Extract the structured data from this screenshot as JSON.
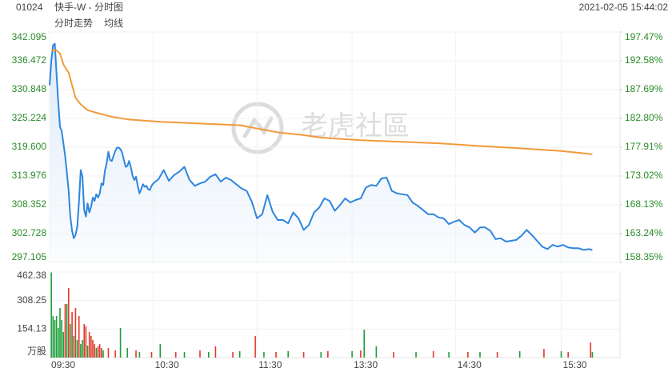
{
  "header": {
    "code": "01024",
    "name": "快手-W - 分时图",
    "datetime": "2021-02-05 15:44:02"
  },
  "watermark": "老虎社區",
  "chart_data": [
    {
      "type": "line",
      "xlim": [
        0,
        330
      ],
      "ylim": [
        297.105,
        342.095
      ],
      "yticks": [
        342.095,
        336.472,
        330.848,
        325.224,
        {
          "value": 319.6,
          "label": "319.600"
        },
        313.976,
        308.352,
        302.728,
        297.105
      ],
      "y2lim": [
        158.35,
        197.47
      ],
      "y2ticks": [
        {
          "value": 197.47,
          "label": "197.47%"
        },
        {
          "value": 192.58,
          "label": "192.58%"
        },
        {
          "value": 187.69,
          "label": "187.69%"
        },
        {
          "value": 182.8,
          "label": "182.80%"
        },
        {
          "value": 177.91,
          "label": "177.91%"
        },
        {
          "value": 173.02,
          "label": "173.02%"
        },
        {
          "value": 168.13,
          "label": "168.13%"
        },
        {
          "value": 163.24,
          "label": "163.24%"
        },
        {
          "value": 158.35,
          "label": "158.35%"
        }
      ],
      "grid": true,
      "series": [
        {
          "name": "分时走势",
          "color": "#2f86dc",
          "x": [
            0,
            1,
            2,
            3,
            4,
            5,
            6,
            7,
            8,
            9,
            10,
            11,
            12,
            13,
            14,
            15,
            16,
            17,
            18,
            19,
            20,
            21,
            22,
            23,
            24,
            25,
            26,
            27,
            28,
            29,
            30,
            31,
            32,
            33,
            34,
            35,
            36,
            37,
            38,
            39,
            40,
            41,
            42,
            43,
            44,
            45,
            46,
            47,
            48,
            49,
            50,
            51,
            52,
            53,
            54,
            55,
            56,
            57,
            58,
            59,
            60,
            63,
            66,
            69,
            72,
            75,
            78,
            81,
            84,
            87,
            90,
            93,
            96,
            99,
            102,
            105,
            108,
            111,
            114,
            117,
            120,
            123,
            126,
            129,
            132,
            135,
            138,
            141,
            144,
            147,
            150,
            153,
            156,
            159,
            162,
            165,
            168,
            171,
            174,
            177,
            180,
            183,
            186,
            189,
            192,
            195,
            198,
            201,
            204,
            207,
            210,
            213,
            216,
            219,
            222,
            225,
            228,
            231,
            234,
            237,
            240,
            243,
            246,
            249,
            252,
            255,
            258,
            261,
            264,
            267,
            270,
            273,
            276,
            279,
            282,
            285,
            288,
            291,
            294,
            297,
            300,
            303,
            306,
            309,
            312,
            314
          ],
          "values": [
            331.7,
            336.57,
            339.5,
            339.82,
            334.14,
            328.45,
            323.58,
            322.77,
            320.33,
            317.89,
            314.65,
            311.07,
            306.04,
            303.28,
            301.82,
            302.47,
            304.09,
            308.96,
            315.13,
            313.83,
            307.34,
            306.04,
            308.64,
            306.85,
            307.99,
            309.77,
            309.12,
            310.42,
            309.77,
            310.59,
            312.54,
            312.21,
            314.97,
            316.43,
            318.71,
            317.08,
            316.92,
            317.89,
            318.87,
            319.52,
            319.52,
            319.19,
            318.54,
            317.08,
            315.78,
            315.95,
            316.92,
            315.78,
            314.0,
            313.18,
            313.83,
            312.05,
            310.59,
            311.4,
            312.37,
            311.89,
            312.05,
            311.4,
            311.24,
            312.05,
            312.54,
            313.35,
            315.13,
            313.02,
            314.16,
            314.81,
            315.78,
            313.18,
            312.05,
            312.54,
            312.86,
            313.83,
            314.32,
            312.86,
            313.67,
            313.18,
            312.37,
            311.56,
            311.07,
            308.96,
            305.71,
            306.53,
            310.26,
            307.01,
            305.39,
            305.39,
            304.74,
            306.85,
            305.71,
            303.44,
            304.41,
            306.85,
            307.82,
            309.61,
            309.12,
            307.18,
            308.31,
            309.61,
            308.8,
            309.29,
            309.61,
            311.72,
            312.21,
            312.05,
            313.51,
            313.67,
            311.07,
            310.59,
            310.42,
            310.26,
            308.8,
            308.15,
            307.34,
            306.53,
            306.53,
            305.88,
            305.71,
            304.58,
            305.06,
            305.39,
            304.41,
            303.93,
            302.95,
            303.93,
            303.93,
            303.28,
            301.65,
            301.82,
            301.17,
            301.33,
            301.49,
            302.3,
            303.44,
            302.47,
            301.33,
            300.19,
            299.7,
            300.52,
            300.19,
            300.52,
            300.03,
            299.87,
            299.87,
            299.54,
            299.7,
            299.54
          ]
        },
        {
          "name": "均线",
          "color": "#f29a3a",
          "x": [
            1,
            4,
            6,
            8,
            11,
            13,
            15,
            18,
            22,
            27,
            36,
            45,
            64,
            87,
            110,
            120,
            133,
            147,
            157,
            180,
            203,
            226,
            249,
            273,
            296,
            314
          ],
          "values": [
            338.52,
            338.52,
            337.87,
            335.76,
            334.14,
            331.7,
            329.26,
            327.96,
            326.83,
            326.34,
            325.53,
            325.04,
            324.55,
            324.23,
            323.9,
            323.25,
            322.44,
            321.96,
            321.47,
            320.98,
            320.66,
            320.33,
            319.84,
            319.36,
            318.87,
            318.22
          ]
        }
      ]
    },
    {
      "type": "bar",
      "xlim": [
        0,
        330
      ],
      "ylim": [
        0,
        462.38
      ],
      "yticks": [
        462.38,
        308.25,
        154.13
      ],
      "unit": "万股",
      "xticks": [
        {
          "value": 0,
          "label": "09:30"
        },
        {
          "value": 60,
          "label": "10:30"
        },
        {
          "value": 120,
          "label": "11:30"
        },
        {
          "value": 175,
          "label": "13:30"
        },
        {
          "value": 235,
          "label": "14:30"
        },
        {
          "value": 296,
          "label": "15:30"
        }
      ],
      "series": [
        {
          "color": "#1e9e3a",
          "x": [
            1,
            2,
            3,
            4,
            5,
            6,
            7,
            8,
            10,
            12,
            14,
            16,
            18,
            19,
            22,
            27,
            31,
            41,
            45,
            52,
            64,
            78,
            92,
            110,
            124,
            138,
            157,
            175,
            182,
            189,
            212,
            231,
            249,
            272,
            296,
            314
          ],
          "values": [
            460,
            225,
            203,
            225,
            160,
            268,
            203,
            138,
            290,
            181,
            117,
            95,
            73,
            95,
            65,
            52,
            39,
            160,
            52,
            30,
            73,
            30,
            30,
            35,
            30,
            35,
            30,
            35,
            151,
            61,
            30,
            30,
            30,
            35,
            35,
            30
          ]
        },
        {
          "color": "#e03a2a",
          "x": [
            9,
            11,
            13,
            15,
            17,
            20,
            21,
            23,
            24,
            25,
            26,
            28,
            29,
            30,
            34,
            38,
            50,
            59,
            73,
            87,
            96,
            106,
            119,
            131,
            147,
            161,
            180,
            199,
            222,
            242,
            259,
            286,
            300,
            313
          ],
          "values": [
            290,
            376,
            246,
            268,
            225,
            181,
            169,
            138,
            117,
            95,
            73,
            61,
            73,
            52,
            52,
            39,
            39,
            30,
            30,
            39,
            61,
            30,
            117,
            30,
            30,
            35,
            39,
            30,
            35,
            30,
            30,
            47,
            30,
            82
          ]
        }
      ]
    }
  ]
}
